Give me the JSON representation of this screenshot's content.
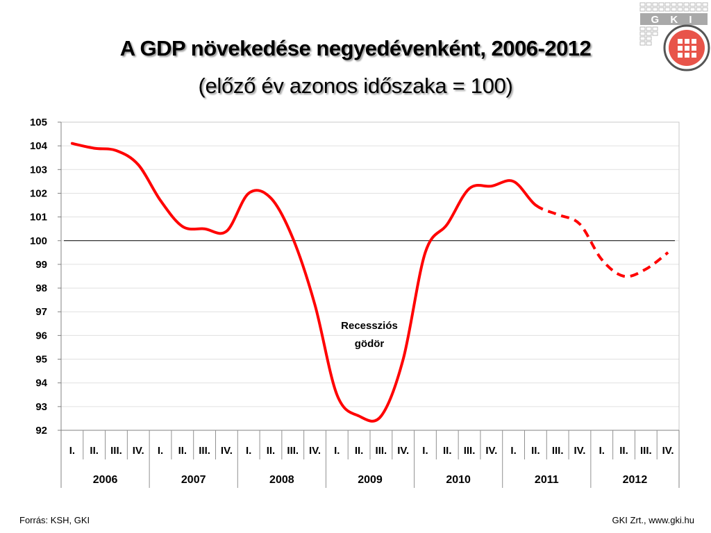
{
  "header": {
    "title": "A GDP növekedése negyedévenként, 2006-2012",
    "subtitle": "(előző év azonos időszaka = 100)"
  },
  "logo": {
    "text": "G K I",
    "icon": "gki-logo-icon"
  },
  "footer": {
    "source": "Forrás: KSH, GKI",
    "credit": "GKI Zrt., www.gki.hu"
  },
  "colors": {
    "line": "#ff0000",
    "grid": "#e0e0e0",
    "reference": "#000000",
    "logo_red": "#e8544a"
  },
  "chart_data": {
    "type": "line",
    "title": "A GDP növekedése negyedévenként, 2006-2012",
    "subtitle": "(előző év azonos időszaka = 100)",
    "ylim": [
      92,
      105
    ],
    "yticks": [
      92,
      93,
      94,
      95,
      96,
      97,
      98,
      99,
      100,
      101,
      102,
      103,
      104,
      105
    ],
    "reference_line": 100,
    "grid": true,
    "quarter_labels": [
      "I.",
      "II.",
      "III.",
      "IV.",
      "I.",
      "II.",
      "III.",
      "IV.",
      "I.",
      "II.",
      "III.",
      "IV.",
      "I.",
      "II.",
      "III.",
      "IV.",
      "I.",
      "II.",
      "III.",
      "IV.",
      "I.",
      "II.",
      "III.",
      "IV.",
      "I.",
      "II.",
      "III.",
      "IV."
    ],
    "years": [
      "2006",
      "2007",
      "2008",
      "2009",
      "2010",
      "2011",
      "2012"
    ],
    "values": [
      104.1,
      103.9,
      103.8,
      103.2,
      101.7,
      100.6,
      100.5,
      100.4,
      102.0,
      101.8,
      100.1,
      97.3,
      93.5,
      92.6,
      92.6,
      95.0,
      99.5,
      100.7,
      102.2,
      102.3,
      102.5,
      101.5,
      101.1,
      100.7,
      99.2,
      98.5,
      98.8,
      99.5
    ],
    "solid_until_index": 21,
    "annotation": [
      "Recessziós",
      "gödör"
    ]
  }
}
